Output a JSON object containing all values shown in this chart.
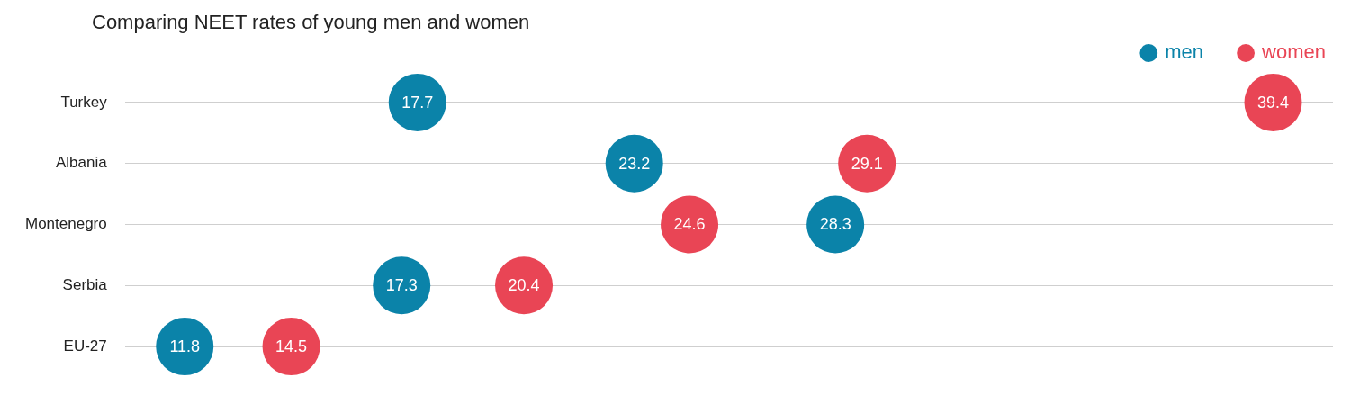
{
  "chart_data": {
    "type": "scatter",
    "title": "Comparing NEET rates of young men and women",
    "orientation": "horizontal",
    "categories": [
      "Turkey",
      "Albania",
      "Montenegro",
      "Serbia",
      "EU-27"
    ],
    "series": [
      {
        "name": "men",
        "color": "#0b83a9",
        "values": [
          17.7,
          23.2,
          28.3,
          17.3,
          11.8
        ]
      },
      {
        "name": "women",
        "color": "#e94555",
        "values": [
          39.4,
          29.1,
          24.6,
          20.4,
          14.5
        ]
      }
    ],
    "data_labels": true,
    "grid": "y",
    "legend": "top right",
    "marker": "circle"
  }
}
